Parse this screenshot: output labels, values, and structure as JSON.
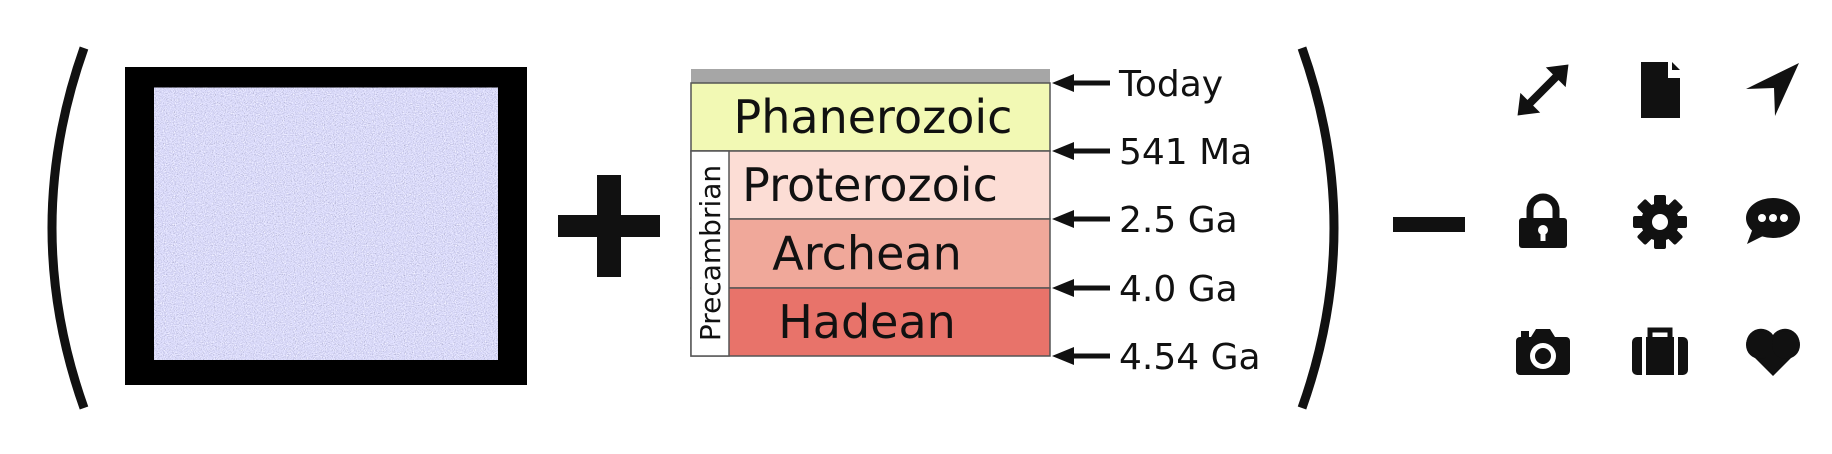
{
  "timescale": {
    "group_label": "Precambrian",
    "eras": [
      {
        "name": "Phanerozoic",
        "color": "#F2F9B4"
      },
      {
        "name": "Proterozoic",
        "color": "#FCDDD5"
      },
      {
        "name": "Archean",
        "color": "#F0A89A"
      },
      {
        "name": "Hadean",
        "color": "#E8736A"
      }
    ],
    "top_band_color": "#A6A6A6",
    "boundaries": [
      "Today",
      "541 Ma",
      "2.5 Ga",
      "4.0 Ga",
      "4.54 Ga"
    ]
  },
  "icons": [
    {
      "name": "expand-icon"
    },
    {
      "name": "document-icon"
    },
    {
      "name": "navigation-arrow-icon"
    },
    {
      "name": "lock-icon"
    },
    {
      "name": "gear-icon"
    },
    {
      "name": "speech-bubble-icon"
    },
    {
      "name": "camera-icon"
    },
    {
      "name": "briefcase-icon"
    },
    {
      "name": "heart-icon"
    }
  ]
}
